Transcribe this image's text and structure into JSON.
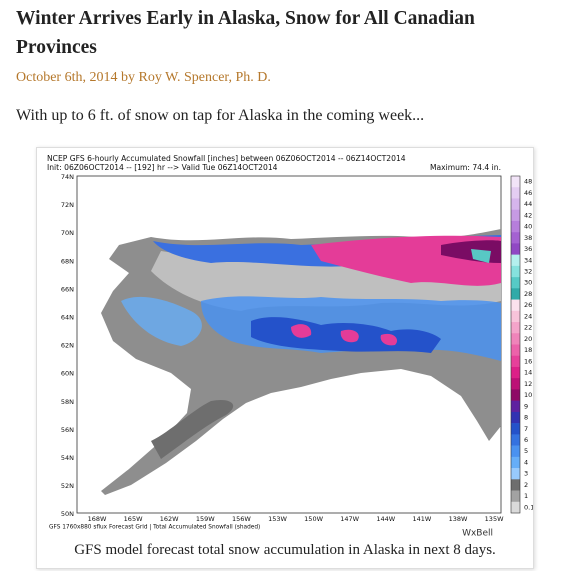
{
  "header": {
    "title": "Winter Arrives Early in Alaska, Snow for All Canadian Provinces",
    "byline": "October 6th, 2014 by Roy W. Spencer, Ph. D."
  },
  "intro": "With up to 6 ft. of snow on tap for Alaska in the coming week...",
  "figure": {
    "map_title_line1": "NCEP GFS 6-hourly Accumulated Snowfall [inches] between 06Z06OCT2014 -- 06Z14OCT2014",
    "map_title_line2": "Init: 06Z06OCT2014 -- [192] hr --> Valid Tue 06Z14OCT2014",
    "maximum": "Maximum:  74.4 in.",
    "lat_labels": [
      "74N",
      "72N",
      "70N",
      "68N",
      "66N",
      "64N",
      "62N",
      "60N",
      "58N",
      "56N",
      "54N",
      "52N",
      "50N"
    ],
    "lon_labels": [
      "168W",
      "165W",
      "162W",
      "159W",
      "156W",
      "153W",
      "150W",
      "147W",
      "144W",
      "141W",
      "138W",
      "135W"
    ],
    "colorbar": {
      "labels": [
        "48",
        "46",
        "44",
        "42",
        "40",
        "38",
        "36",
        "34",
        "32",
        "30",
        "28",
        "26",
        "24",
        "22",
        "20",
        "18",
        "16",
        "14",
        "12",
        "10",
        "9",
        "8",
        "7",
        "6",
        "5",
        "4",
        "3",
        "2",
        "1",
        "0.1"
      ],
      "colors": [
        "#f2e4f8",
        "#e4cdf2",
        "#d6b5ec",
        "#c69ae4",
        "#b67edc",
        "#a462d2",
        "#9048c4",
        "#b4f0ee",
        "#86e2de",
        "#56cac6",
        "#30aaa8",
        "#fbe2ee",
        "#f8c4da",
        "#f4a4ca",
        "#f084ba",
        "#ec62aa",
        "#e6409a",
        "#dc2088",
        "#bc1076",
        "#8e0a66",
        "#5e22a0",
        "#3232b2",
        "#2452ca",
        "#3472e0",
        "#4a92f0",
        "#66aef8",
        "#98cafc",
        "#6e6e6e",
        "#a2a2a2",
        "#dadada"
      ]
    },
    "footer": "GFS 1760x880 sflux Forecast Grid | Total Accumulated Snowfall (shaded)",
    "brand": "WxBell"
  },
  "caption": "GFS model forecast total snow accumulation in Alaska in next 8 days."
}
